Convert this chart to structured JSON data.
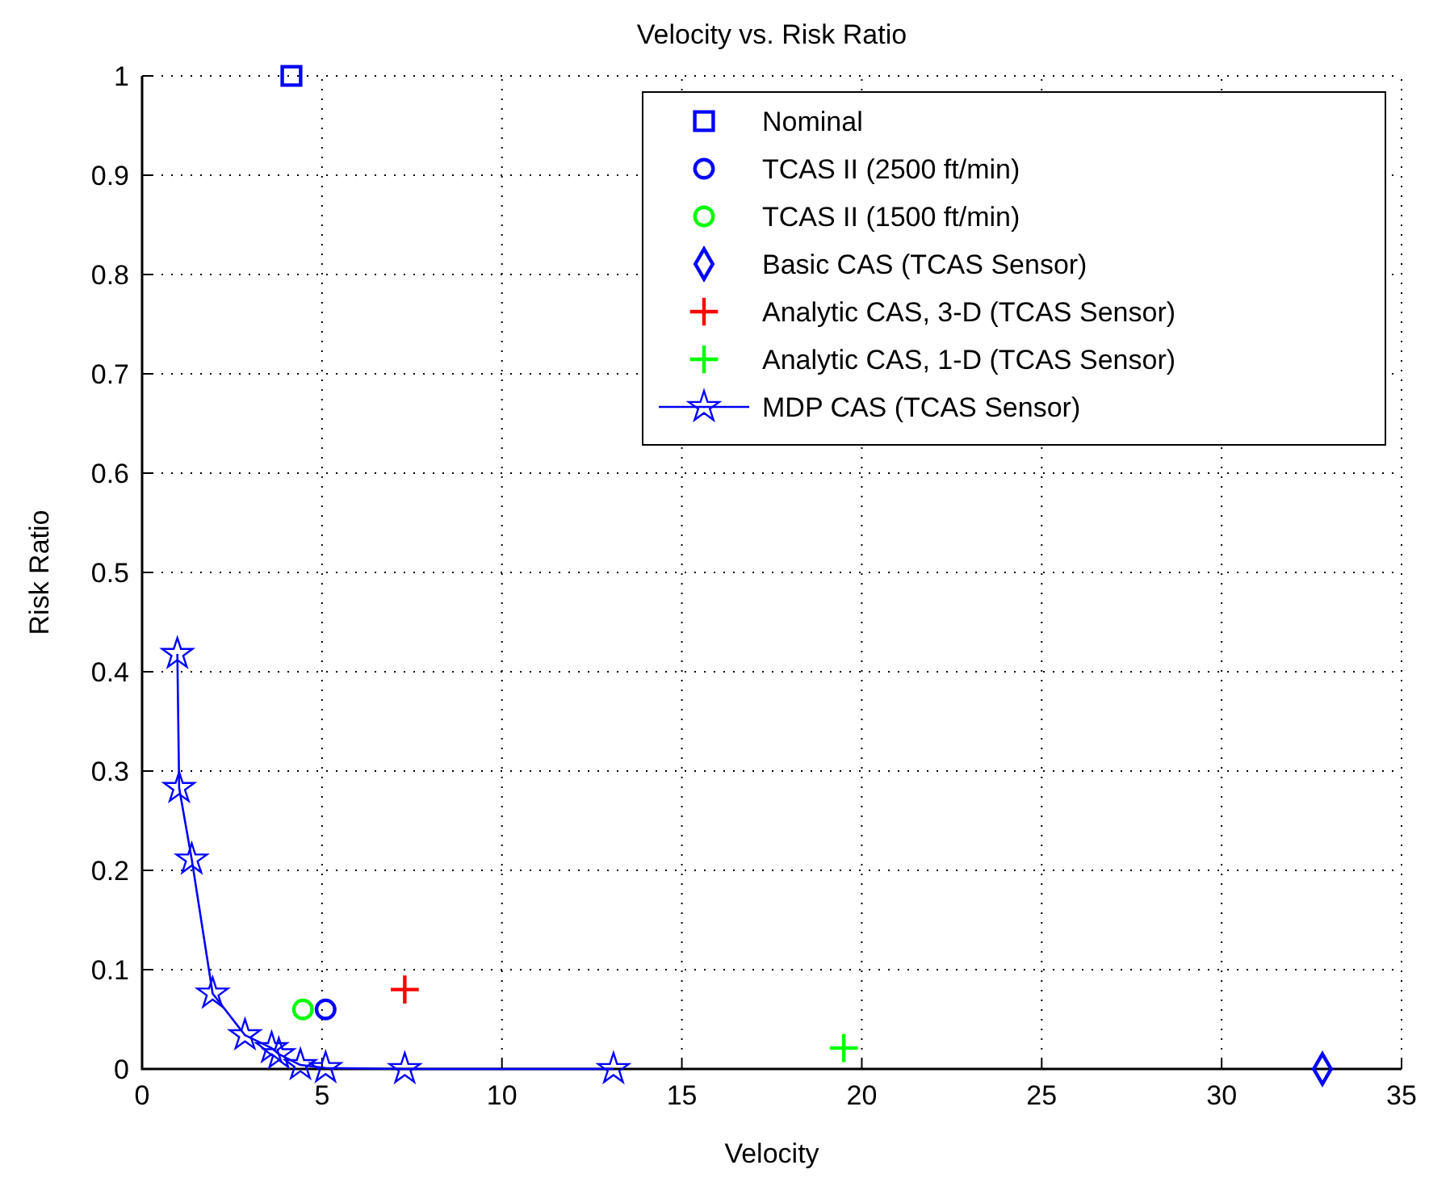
{
  "chart_data": {
    "type": "scatter",
    "title": "Velocity vs. Risk Ratio",
    "xlabel": "Velocity",
    "ylabel": "Risk Ratio",
    "xlim": [
      0,
      35
    ],
    "xticks": [
      0,
      5,
      10,
      15,
      20,
      25,
      30,
      35
    ],
    "ylim": [
      0,
      1
    ],
    "yticks": [
      0,
      0.1,
      0.2,
      0.3,
      0.4,
      0.5,
      0.6,
      0.7,
      0.8,
      0.9,
      1
    ],
    "grid": true,
    "legend": "top right",
    "series": [
      {
        "name": "Nominal",
        "color": "#0000ff",
        "marker": "square",
        "x": [
          4.15
        ],
        "values": [
          1
        ]
      },
      {
        "name": "TCAS II (2500 ft/min)",
        "color": "#0000ff",
        "marker": "circle",
        "x": [
          5.1
        ],
        "values": [
          0.06
        ]
      },
      {
        "name": "TCAS II (1500 ft/min)",
        "color": "#00ff00",
        "marker": "circle",
        "x": [
          4.47
        ],
        "values": [
          0.06
        ]
      },
      {
        "name": "Basic CAS (TCAS Sensor)",
        "color": "#0000ff",
        "marker": "diamond",
        "x": [
          32.8
        ],
        "values": [
          0
        ]
      },
      {
        "name": "Analytic CAS, 3-D (TCAS Sensor)",
        "color": "#ff0000",
        "marker": "cross",
        "x": [
          7.3
        ],
        "values": [
          0.08
        ]
      },
      {
        "name": "Analytic CAS, 1-D (TCAS Sensor)",
        "color": "#00ff00",
        "marker": "cross",
        "x": [
          19.5
        ],
        "values": [
          0.021
        ]
      },
      {
        "name": "MDP CAS (TCAS Sensor)",
        "type": "line",
        "color": "#0000ff",
        "marker": "star",
        "line_style": "solid",
        "x": [
          0.98,
          1.03,
          1.38,
          1.96,
          2.86,
          3.6,
          3.8,
          4.4,
          5.1,
          7.3,
          13.1
        ],
        "values": [
          0.418,
          0.283,
          0.211,
          0.076,
          0.034,
          0.021,
          0.015,
          0.004,
          0.001,
          0,
          0
        ]
      }
    ]
  }
}
